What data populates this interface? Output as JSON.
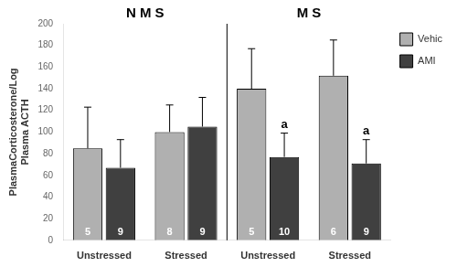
{
  "chart_data": {
    "type": "bar",
    "ylabel": "PlasmaCorticosterone/Log\nPlasma ACTH",
    "categories": [
      "Unstressed",
      "Stressed",
      "Unstressed",
      "Stressed"
    ],
    "sections": [
      "N M S",
      "N M S",
      "M S",
      "M S"
    ],
    "series": [
      {
        "name": "Vehic",
        "color": "#b0b0b0",
        "values": [
          85,
          100,
          140,
          152
        ],
        "errors": [
          38,
          25,
          37,
          33
        ],
        "n": [
          5,
          8,
          5,
          6
        ]
      },
      {
        "name": "AMI",
        "color": "#404040",
        "values": [
          67,
          105,
          77,
          71
        ],
        "errors": [
          26,
          27,
          22,
          22
        ],
        "n": [
          9,
          9,
          10,
          9
        ],
        "annotations": [
          null,
          null,
          "a",
          "a"
        ]
      }
    ],
    "ylim": [
      0,
      200
    ],
    "yticks": [
      0,
      20,
      40,
      60,
      80,
      100,
      120,
      140,
      160,
      180,
      200
    ],
    "grid": false,
    "legend": "upper right"
  }
}
